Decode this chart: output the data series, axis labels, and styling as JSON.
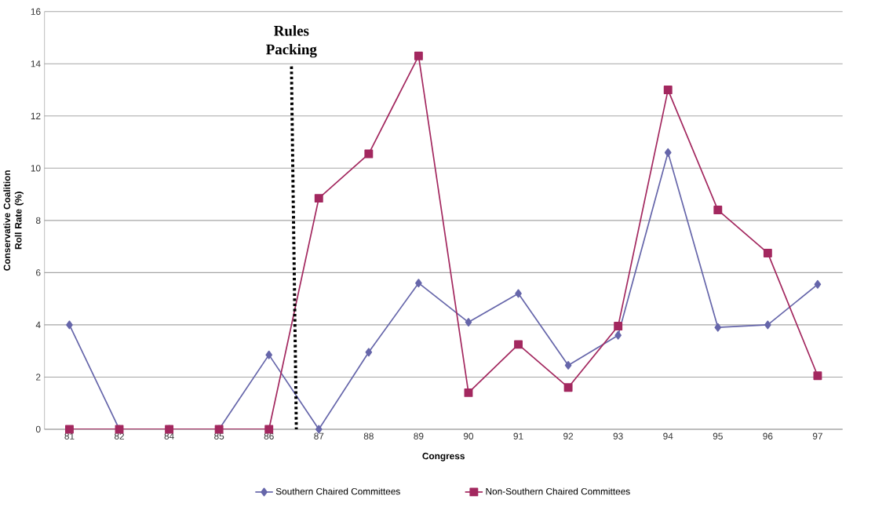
{
  "chart_data": {
    "type": "line",
    "xlabel": "Congress",
    "ylabel": "Conservative Coalition Roll Rate (%)",
    "categories": [
      "81",
      "82",
      "84",
      "85",
      "86",
      "87",
      "88",
      "89",
      "90",
      "91",
      "92",
      "93",
      "94",
      "95",
      "96",
      "97"
    ],
    "series": [
      {
        "name": "Southern Chaired Committees",
        "color": "#6666aa",
        "marker": "diamond",
        "values": [
          4.0,
          0,
          0,
          0,
          2.85,
          0,
          2.95,
          5.6,
          4.1,
          5.2,
          2.45,
          3.6,
          10.6,
          3.9,
          4.0,
          5.55
        ]
      },
      {
        "name": "Non-Southern Chaired Committees",
        "color": "#a3285f",
        "marker": "square",
        "values": [
          0,
          0,
          0,
          0,
          0,
          8.85,
          10.55,
          14.3,
          1.4,
          3.25,
          1.6,
          3.95,
          13.0,
          8.4,
          6.75,
          2.05
        ]
      }
    ],
    "ylim": [
      0,
      16
    ],
    "yticks": [
      0,
      2,
      4,
      6,
      8,
      10,
      12,
      14,
      16
    ],
    "grid": "y",
    "legend": "bottom",
    "line_style": "solid",
    "annotations": [
      "Rules Packing"
    ]
  }
}
